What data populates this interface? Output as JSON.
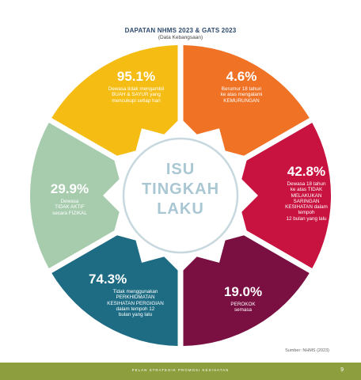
{
  "header": {
    "title": "DAPATAN NHMS 2023 & GATS 2023",
    "subtitle": "(Data Kebangsaan)"
  },
  "center_label": [
    "ISU",
    "TINGKAH",
    "LAKU"
  ],
  "segments": [
    {
      "percent": "95.1%",
      "lines": [
        "Dewasa tidak mengambil",
        "BUAH & SAYUR yang",
        "mencukupi setiap hari"
      ],
      "color": "#f5bd14"
    },
    {
      "percent": "4.6%",
      "lines": [
        "Berumur 18 tahun",
        "ke atas mengalami",
        "KEMURUNGAN"
      ],
      "color": "#f07225"
    },
    {
      "percent": "42.8%",
      "lines": [
        "Dewasa 18 tahun",
        "ke atas TIDAK",
        "MELAKUKAN",
        "SARINGAN",
        "KESIHATAN dalam",
        "tempoh",
        "12 bulan yang lalu"
      ],
      "color": "#c8123f"
    },
    {
      "percent": "19.0%",
      "lines": [
        "PEROKOK",
        "semasa"
      ],
      "color": "#7a0f41"
    },
    {
      "percent": "74.3%",
      "lines": [
        "Tidak menggunakan",
        "PERKHIDMATAN",
        "KESIHATAN PERGIGIAN",
        "dalam tempoh 12",
        "bulan yang lalu"
      ],
      "color": "#1e6c84"
    },
    {
      "percent": "29.9%",
      "lines": [
        "Dewasa",
        "TIDAK AKTIF",
        "secara FIZIKAL"
      ],
      "color": "#a6ccad"
    }
  ],
  "source": "Sumber: NHMS (2023)",
  "footer": {
    "text": "PELAN STRATEGIK PROMOSI KESIHATAN",
    "page": "9"
  }
}
